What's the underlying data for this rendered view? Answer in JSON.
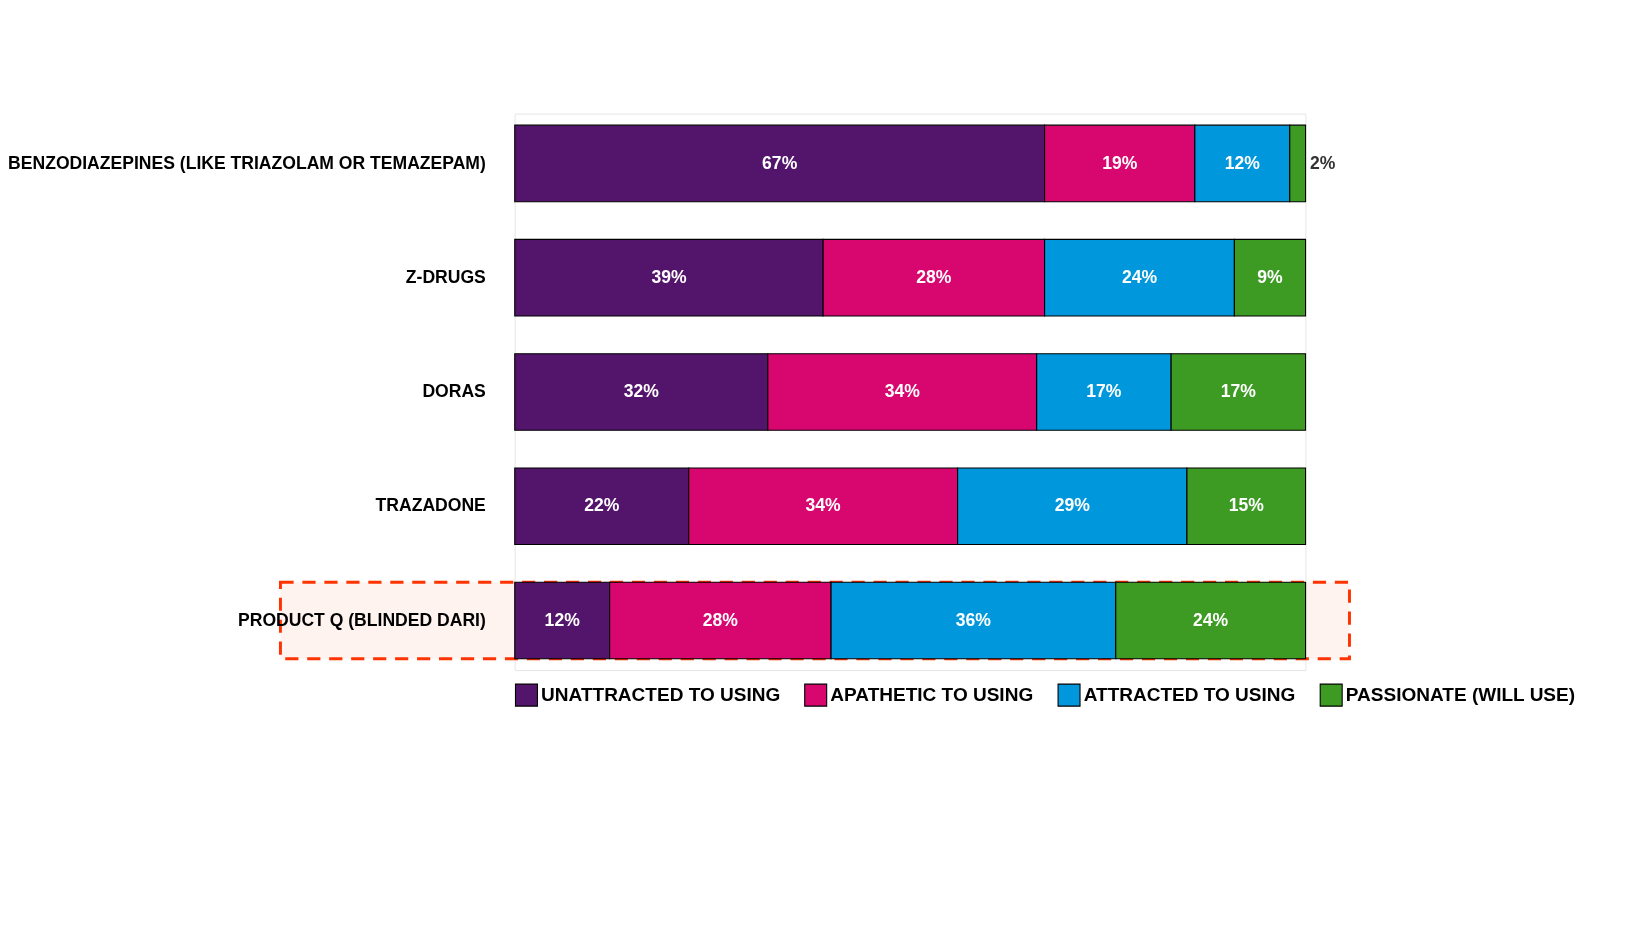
{
  "chart_data": {
    "type": "bar",
    "orientation": "horizontal",
    "stacked": true,
    "legend": "bottom",
    "bands": [
      {
        "axis": "y",
        "from": "PRODUCT Q (BLINDED DARI)",
        "to": "PRODUCT Q (BLINDED DARI)",
        "color": "#ff3300"
      }
    ],
    "categories": [
      "BENZODIAZEPINES (LIKE TRIAZOLAM OR TEMAZEPAM)",
      "Z-DRUGS",
      "DORAS",
      "TRAZADONE",
      "PRODUCT Q (BLINDED DARI)"
    ],
    "series": [
      {
        "name": "UNATTRACTED TO USING",
        "color": "#53146b",
        "values": [
          67,
          39,
          32,
          22,
          12
        ],
        "value_labels": [
          "67%",
          "39%",
          "32%",
          "22%",
          "12%"
        ]
      },
      {
        "name": "APATHETIC TO USING",
        "color": "#d8066f",
        "values": [
          19,
          28,
          34,
          34,
          28
        ],
        "value_labels": [
          "19%",
          "28%",
          "34%",
          "34%",
          "28%"
        ]
      },
      {
        "name": "ATTRACTED TO USING",
        "color": "#0097dc",
        "values": [
          12,
          24,
          17,
          29,
          36
        ],
        "value_labels": [
          "12%",
          "24%",
          "17%",
          "29%",
          "36%"
        ]
      },
      {
        "name": "PASSIONATE (WILL USE)",
        "color": "#3d9b23",
        "values": [
          2,
          9,
          17,
          15,
          24
        ],
        "value_labels": [
          "2%",
          "9%",
          "17%",
          "15%",
          "24%"
        ]
      }
    ]
  }
}
